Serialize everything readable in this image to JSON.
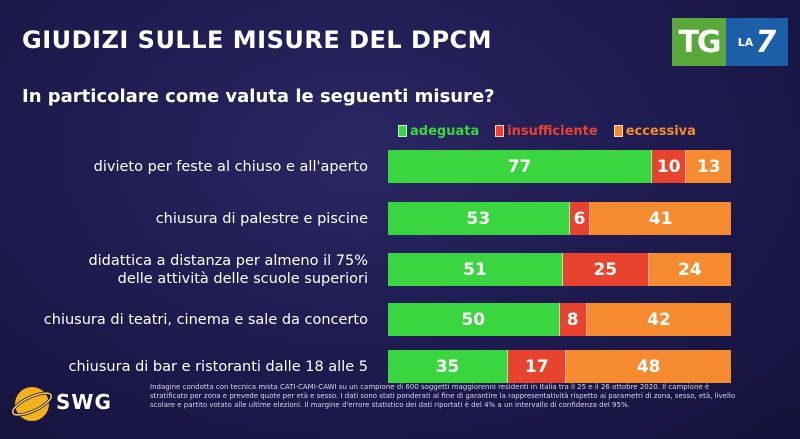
{
  "header": {
    "title": "GIUDIZI SULLE MISURE DEL DPCM",
    "subtitle": "In particolare come valuta le seguenti misure?",
    "broadcaster_tg": "TG",
    "broadcaster_la": "LA",
    "broadcaster_seven": "7"
  },
  "chart_data": {
    "type": "bar",
    "orientation": "horizontal-stacked-100",
    "categories": [
      [
        "divieto per feste al chiuso e all'aperto"
      ],
      [
        "chiusura di palestre e piscine"
      ],
      [
        "didattica a distanza per almeno il 75%",
        "delle attività delle scuole superiori"
      ],
      [
        "chiusura di teatri, cinema e sale da concerto"
      ],
      [
        "chiusura di bar e ristoranti dalle 18 alle 5"
      ]
    ],
    "series": [
      {
        "name": "adeguata",
        "color": "#39d63f",
        "values": [
          77,
          53,
          51,
          50,
          35
        ]
      },
      {
        "name": "insufficiente",
        "color": "#e8432e",
        "values": [
          10,
          6,
          25,
          8,
          17
        ]
      },
      {
        "name": "eccessiva",
        "color": "#f58a2e",
        "values": [
          13,
          41,
          24,
          42,
          48
        ]
      }
    ],
    "legend_position": "top-right",
    "grid": false
  },
  "footer": {
    "brand": "SWG",
    "note": "Indagine condotta con tecnica mista CATI-CAMI-CAWI su un campione di 600 soggetti maggiorenni residenti in Italia tra il 25 e il 26 ottobre 2020. Il campione è stratificato per zona e prevede quote per età e sesso. I dati sono stati ponderati al fine di garantire la rappresentatività rispetto ai parametri di zona, sesso, età, livello scolare e partito votato alle ultime elezioni. Il margine d'errore statistico dei dati riportati è del 4% a un intervallo di confidenza del 95%."
  }
}
